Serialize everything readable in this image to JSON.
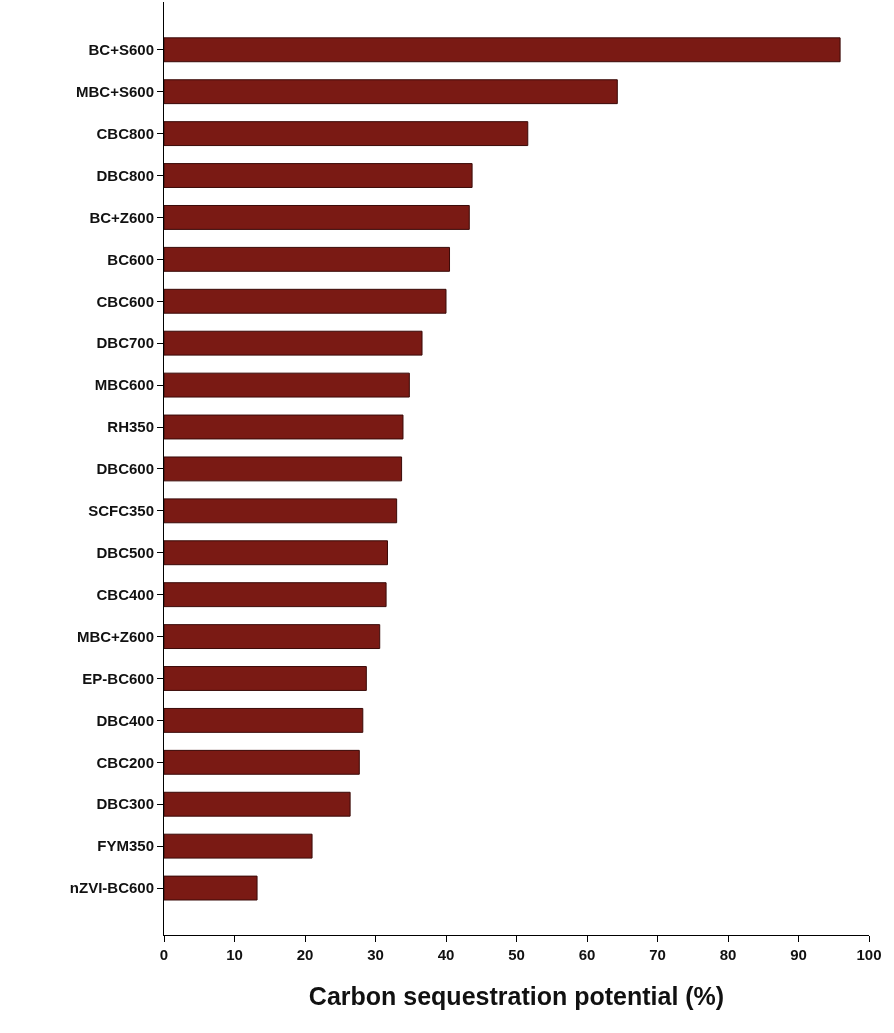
{
  "chart_data": {
    "type": "bar",
    "orientation": "horizontal",
    "xlabel": "Carbon sequestration potential (%)",
    "categories": [
      "BC+S600",
      "MBC+S600",
      "CBC800",
      "DBC800",
      "BC+Z600",
      "BC600",
      "CBC600",
      "DBC700",
      "MBC600",
      "RH350",
      "DBC600",
      "SCFC350",
      "DBC500",
      "CBC400",
      "MBC+Z600",
      "EP-BC600",
      "DBC400",
      "CBC200",
      "DBC300",
      "FYM350",
      "nZVI-BC600"
    ],
    "values": [
      95.9,
      64.3,
      51.6,
      43.7,
      43.3,
      40.5,
      40.0,
      36.6,
      34.8,
      33.9,
      33.7,
      33.0,
      31.7,
      31.5,
      30.6,
      28.7,
      28.2,
      27.7,
      26.4,
      21.0,
      13.2
    ],
    "color": "#7a1a14",
    "xlim": [
      0,
      100
    ],
    "xticks": [
      0,
      10,
      20,
      30,
      40,
      50,
      60,
      70,
      80,
      90,
      100
    ],
    "grid": false,
    "legend": false
  }
}
